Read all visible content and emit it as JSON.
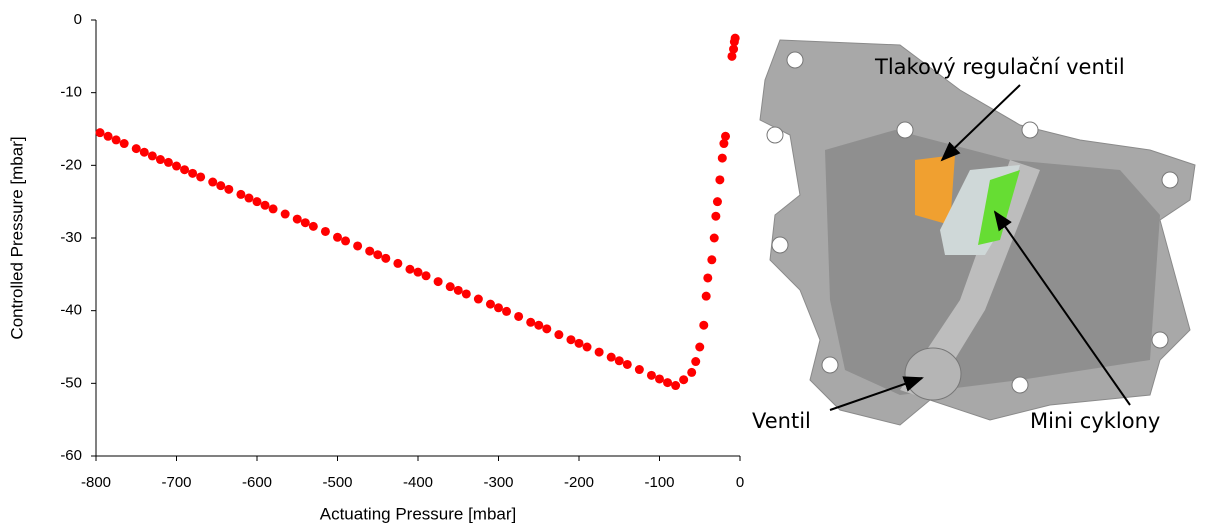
{
  "chart_data": {
    "type": "scatter",
    "xlabel": "Actuating Pressure [mbar]",
    "ylabel": "Controlled Pressure [mbar]",
    "xlim": [
      -800,
      0
    ],
    "ylim": [
      -60,
      0
    ],
    "xticks": [
      -800,
      -700,
      -600,
      -500,
      -400,
      -300,
      -200,
      -100,
      0
    ],
    "yticks": [
      -60,
      -50,
      -40,
      -30,
      -20,
      -10,
      0
    ],
    "series": [
      {
        "color": "#ff0000",
        "x": [
          -795,
          -785,
          -775,
          -765,
          -750,
          -740,
          -730,
          -720,
          -710,
          -700,
          -690,
          -680,
          -670,
          -655,
          -645,
          -635,
          -620,
          -610,
          -600,
          -590,
          -580,
          -565,
          -550,
          -540,
          -530,
          -515,
          -500,
          -490,
          -475,
          -460,
          -450,
          -440,
          -425,
          -410,
          -400,
          -390,
          -375,
          -360,
          -350,
          -340,
          -325,
          -310,
          -300,
          -290,
          -275,
          -260,
          -250,
          -240,
          -225,
          -210,
          -200,
          -190,
          -175,
          -160,
          -150,
          -140,
          -125,
          -110,
          -100,
          -90,
          -80,
          -70,
          -60,
          -55,
          -50,
          -45,
          -42,
          -40,
          -35,
          -32,
          -30,
          -28,
          -25,
          -22,
          -20,
          -18,
          -10,
          -8,
          -7,
          -6
        ],
        "values": [
          -15.5,
          -16.0,
          -16.5,
          -17.0,
          -17.7,
          -18.2,
          -18.7,
          -19.2,
          -19.6,
          -20.1,
          -20.6,
          -21.1,
          -21.6,
          -22.3,
          -22.8,
          -23.3,
          -24.0,
          -24.5,
          -25.0,
          -25.5,
          -26.0,
          -26.7,
          -27.4,
          -27.9,
          -28.4,
          -29.1,
          -29.9,
          -30.4,
          -31.1,
          -31.8,
          -32.3,
          -32.8,
          -33.5,
          -34.3,
          -34.7,
          -35.2,
          -36.0,
          -36.7,
          -37.2,
          -37.7,
          -38.4,
          -39.1,
          -39.6,
          -40.1,
          -40.8,
          -41.6,
          -42.0,
          -42.5,
          -43.3,
          -44.0,
          -44.5,
          -45.0,
          -45.7,
          -46.4,
          -46.9,
          -47.4,
          -48.1,
          -48.9,
          -49.4,
          -49.9,
          -50.3,
          -49.5,
          -48.5,
          -47,
          -45,
          -42,
          -38,
          -35.5,
          -33,
          -30,
          -27,
          -25,
          -22,
          -19,
          -17,
          -16,
          -5,
          -4,
          -3,
          -2.5
        ]
      }
    ]
  },
  "figure": {
    "labels": [
      "Tlakový regulační ventil",
      "Ventil",
      "Mini cyklony"
    ]
  }
}
